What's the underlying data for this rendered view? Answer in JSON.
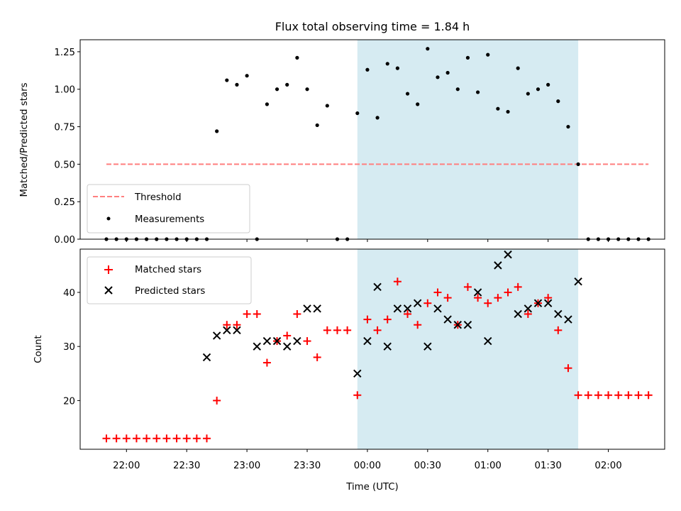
{
  "chart_data": [
    {
      "type": "scatter",
      "title": "Flux total observing time = 1.84 h",
      "ylabel": "Matched/Predicted stars",
      "xlabel": "",
      "ylim": [
        0,
        1.33
      ],
      "y_ticks": [
        "0.00",
        "0.25",
        "0.50",
        "0.75",
        "1.00",
        "1.25"
      ],
      "shaded_span": {
        "start": "23:55",
        "end": "01:45",
        "color": "#add8e6"
      },
      "legend": {
        "placement": "lower-left",
        "entries": [
          "Threshold",
          "Measurements"
        ]
      },
      "series": [
        {
          "name": "Threshold",
          "style": "dashed-line",
          "color": "#ff7f7f",
          "x": [
            "21:50",
            "02:20"
          ],
          "y": [
            0.5,
            0.5
          ]
        },
        {
          "name": "Measurements",
          "style": "dot",
          "color": "#000000",
          "x": [
            "21:50",
            "21:55",
            "22:00",
            "22:05",
            "22:10",
            "22:15",
            "22:20",
            "22:25",
            "22:30",
            "22:35",
            "22:40",
            "22:45",
            "22:50",
            "22:55",
            "23:00",
            "23:05",
            "23:10",
            "23:15",
            "23:20",
            "23:25",
            "23:30",
            "23:35",
            "23:40",
            "23:45",
            "23:50",
            "23:55",
            "00:00",
            "00:05",
            "00:10",
            "00:15",
            "00:20",
            "00:25",
            "00:30",
            "00:35",
            "00:40",
            "00:45",
            "00:50",
            "00:55",
            "01:00",
            "01:05",
            "01:10",
            "01:15",
            "01:20",
            "01:25",
            "01:30",
            "01:35",
            "01:40",
            "01:45",
            "01:50",
            "01:55",
            "02:00",
            "02:05",
            "02:10",
            "02:15",
            "02:20"
          ],
          "y": [
            0,
            0,
            0,
            0,
            0,
            0,
            0,
            0,
            0,
            0,
            0,
            0.72,
            1.06,
            1.03,
            1.09,
            0,
            0.9,
            1.0,
            1.03,
            1.21,
            1.0,
            0.76,
            0.89,
            0,
            0,
            0.84,
            1.13,
            0.81,
            1.17,
            1.14,
            0.97,
            0.9,
            1.27,
            1.08,
            1.11,
            1.0,
            1.21,
            0.98,
            1.23,
            0.87,
            0.85,
            1.14,
            0.97,
            1.0,
            1.03,
            0.92,
            0.75,
            0.5,
            0,
            0,
            0,
            0,
            0,
            0,
            0
          ]
        }
      ]
    },
    {
      "type": "scatter",
      "ylabel": "Count",
      "xlabel": "Time (UTC)",
      "ylim": [
        11,
        48
      ],
      "y_ticks": [
        "20",
        "30",
        "40"
      ],
      "x_ticks": [
        "22:00",
        "22:30",
        "23:00",
        "23:30",
        "00:00",
        "00:30",
        "01:00",
        "01:30",
        "02:00"
      ],
      "shaded_span": {
        "start": "23:55",
        "end": "01:45",
        "color": "#add8e6"
      },
      "legend": {
        "placement": "upper-left",
        "entries": [
          "Matched stars",
          "Predicted stars"
        ]
      },
      "series": [
        {
          "name": "Matched stars",
          "marker": "+",
          "color": "#ff0000",
          "x": [
            "21:50",
            "21:55",
            "22:00",
            "22:05",
            "22:10",
            "22:15",
            "22:20",
            "22:25",
            "22:30",
            "22:35",
            "22:40",
            "22:45",
            "22:50",
            "22:55",
            "23:00",
            "23:05",
            "23:10",
            "23:15",
            "23:20",
            "23:25",
            "23:30",
            "23:35",
            "23:40",
            "23:45",
            "23:50",
            "23:55",
            "00:00",
            "00:05",
            "00:10",
            "00:15",
            "00:20",
            "00:25",
            "00:30",
            "00:35",
            "00:40",
            "00:45",
            "00:50",
            "00:55",
            "01:00",
            "01:05",
            "01:10",
            "01:15",
            "01:20",
            "01:25",
            "01:30",
            "01:35",
            "01:40",
            "01:45",
            "01:50",
            "01:55",
            "02:00",
            "02:05",
            "02:10",
            "02:15",
            "02:20"
          ],
          "y": [
            13,
            13,
            13,
            13,
            13,
            13,
            13,
            13,
            13,
            13,
            13,
            20,
            34,
            34,
            36,
            36,
            27,
            31,
            32,
            36,
            31,
            28,
            33,
            33,
            33,
            21,
            35,
            33,
            35,
            42,
            36,
            34,
            38,
            40,
            39,
            34,
            41,
            39,
            38,
            39,
            40,
            41,
            36,
            38,
            39,
            33,
            26,
            21,
            21,
            21,
            21,
            21,
            21,
            21,
            21
          ]
        },
        {
          "name": "Predicted stars",
          "marker": "x",
          "color": "#000000",
          "x": [
            "22:40",
            "22:45",
            "22:50",
            "22:55",
            "23:05",
            "23:10",
            "23:15",
            "23:20",
            "23:25",
            "23:30",
            "23:35",
            "23:55",
            "00:00",
            "00:05",
            "00:10",
            "00:15",
            "00:20",
            "00:25",
            "00:30",
            "00:35",
            "00:40",
            "00:45",
            "00:50",
            "00:55",
            "01:00",
            "01:05",
            "01:10",
            "01:15",
            "01:20",
            "01:25",
            "01:30",
            "01:35",
            "01:40",
            "01:45"
          ],
          "y": [
            28,
            32,
            33,
            33,
            30,
            31,
            31,
            30,
            31,
            37,
            37,
            25,
            31,
            41,
            30,
            37,
            37,
            38,
            30,
            37,
            35,
            34,
            34,
            40,
            31,
            45,
            47,
            36,
            37,
            38,
            38,
            36,
            35,
            42
          ]
        }
      ]
    }
  ]
}
